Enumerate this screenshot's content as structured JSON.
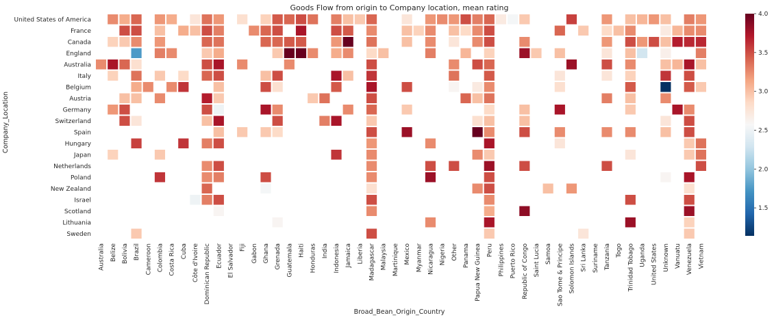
{
  "chart_data": {
    "type": "heatmap",
    "title": "Goods Flow from origin to Company location, mean rating",
    "xlabel": "Broad_Bean_Origin_Country",
    "ylabel": "Company_Location",
    "x": [
      "Australia",
      "Belize",
      "Bolivia",
      "Brazil",
      "Cameroon",
      "Colombia",
      "Costa Rica",
      "Cuba",
      "Côte d'Ivoire",
      "Dominican Republic",
      "Ecuador",
      "El Salvador",
      "Fiji",
      "Gabon",
      "Ghana",
      "Grenada",
      "Guatemala",
      "Haiti",
      "Honduras",
      "India",
      "Indonesia",
      "Jamaica",
      "Liberia",
      "Madagascar",
      "Malaysia",
      "Martinique",
      "Mexico",
      "Myanmar",
      "Nicaragua",
      "Nigeria",
      "Other",
      "Panama",
      "Papua New Guinea",
      "Peru",
      "Philippines",
      "Puerto Rico",
      "Republic of Congo",
      "Saint Lucia",
      "Samoa",
      "Sao Tome & Principe",
      "Solomon Islands",
      "Sri Lanka",
      "Suriname",
      "Tanzania",
      "Togo",
      "Trinidad Tobago",
      "Uganda",
      "United States",
      "Unknown",
      "Vanuatu",
      "Venezuela",
      "Vietnam"
    ],
    "y": [
      "United States of America",
      "France",
      "Canada",
      "England",
      "Australia",
      "Italy",
      "Belgium",
      "Austria",
      "Germany",
      "Switzerland",
      "Spain",
      "Hungary",
      "Japan",
      "Netherlands",
      "Poland",
      "New Zealand",
      "Israel",
      "Scotland",
      "Lithuania",
      "Sweden"
    ],
    "values": [
      [
        null,
        3.25,
        3.1,
        3.4,
        null,
        3.2,
        3.1,
        null,
        2.75,
        3.35,
        3.2,
        null,
        2.8,
        null,
        2.9,
        3.45,
        3.4,
        3.5,
        3.35,
        null,
        3.3,
        3.0,
        2.95,
        3.4,
        null,
        null,
        2.75,
        null,
        3.2,
        3.25,
        3.2,
        3.5,
        3.3,
        3.4,
        2.7,
        2.55,
        2.95,
        null,
        null,
        null,
        3.55,
        null,
        null,
        3.2,
        null,
        3.0,
        3.05,
        3.2,
        3.0,
        null,
        3.3,
        3.2
      ],
      [
        null,
        null,
        3.5,
        3.5,
        null,
        3.0,
        null,
        3.1,
        3.0,
        3.5,
        3.3,
        null,
        null,
        3.25,
        3.4,
        3.5,
        null,
        3.75,
        null,
        null,
        3.5,
        3.45,
        null,
        3.25,
        null,
        null,
        3.0,
        2.9,
        3.25,
        null,
        3.0,
        2.85,
        3.25,
        3.5,
        null,
        null,
        null,
        null,
        null,
        3.4,
        null,
        2.95,
        null,
        2.85,
        3.0,
        3.25,
        null,
        null,
        2.7,
        3.05,
        3.25,
        3.25
      ],
      [
        null,
        2.9,
        2.95,
        3.25,
        null,
        3.2,
        null,
        null,
        null,
        3.4,
        3.35,
        null,
        null,
        null,
        3.4,
        3.4,
        3.45,
        3.45,
        null,
        null,
        3.2,
        4.0,
        null,
        3.35,
        null,
        null,
        3.0,
        null,
        3.25,
        null,
        2.75,
        null,
        3.25,
        3.5,
        null,
        null,
        3.25,
        null,
        null,
        null,
        null,
        null,
        null,
        3.2,
        null,
        3.5,
        3.2,
        3.5,
        3.0,
        3.7,
        3.65,
        3.65
      ],
      [
        null,
        null,
        null,
        1.75,
        null,
        3.3,
        3.25,
        null,
        null,
        2.95,
        3.1,
        null,
        null,
        null,
        null,
        2.95,
        4.0,
        4.0,
        3.25,
        null,
        3.1,
        3.25,
        null,
        2.85,
        3.0,
        null,
        null,
        null,
        3.3,
        null,
        null,
        3.05,
        null,
        2.9,
        null,
        null,
        3.8,
        2.95,
        null,
        3.0,
        null,
        null,
        null,
        2.75,
        null,
        3.0,
        2.3,
        null,
        2.65,
        null,
        null,
        3.3
      ],
      [
        3.25,
        3.75,
        3.4,
        2.8,
        null,
        null,
        null,
        null,
        null,
        3.5,
        3.75,
        null,
        3.25,
        null,
        null,
        null,
        3.25,
        null,
        null,
        null,
        null,
        null,
        null,
        3.5,
        null,
        null,
        null,
        null,
        null,
        null,
        3.25,
        null,
        3.5,
        3.4,
        null,
        null,
        null,
        null,
        null,
        null,
        3.8,
        null,
        null,
        3.5,
        null,
        3.25,
        null,
        null,
        3.0,
        3.05,
        3.75,
        3.0
      ],
      [
        null,
        2.9,
        null,
        3.35,
        null,
        2.95,
        null,
        2.85,
        null,
        3.4,
        3.5,
        null,
        null,
        null,
        3.0,
        3.5,
        null,
        null,
        null,
        null,
        3.75,
        3.0,
        null,
        3.6,
        null,
        null,
        null,
        null,
        null,
        null,
        3.35,
        null,
        null,
        3.45,
        null,
        null,
        null,
        null,
        null,
        2.75,
        null,
        null,
        null,
        2.75,
        null,
        2.9,
        null,
        null,
        3.6,
        null,
        3.5,
        null
      ],
      [
        null,
        null,
        null,
        3.1,
        3.25,
        null,
        3.25,
        3.6,
        null,
        null,
        3.0,
        null,
        null,
        null,
        3.5,
        2.8,
        null,
        null,
        null,
        null,
        3.45,
        null,
        null,
        3.75,
        null,
        null,
        3.5,
        null,
        null,
        null,
        2.6,
        null,
        2.7,
        3.25,
        null,
        null,
        null,
        null,
        null,
        2.8,
        null,
        null,
        null,
        null,
        null,
        3.45,
        null,
        null,
        1.0,
        null,
        3.45,
        2.95
      ],
      [
        null,
        null,
        3.0,
        3.0,
        null,
        3.25,
        null,
        null,
        null,
        3.7,
        2.95,
        null,
        null,
        null,
        null,
        null,
        null,
        null,
        2.95,
        3.35,
        null,
        null,
        null,
        3.5,
        null,
        null,
        null,
        null,
        null,
        null,
        null,
        3.4,
        3.0,
        3.35,
        null,
        null,
        null,
        null,
        null,
        null,
        null,
        null,
        null,
        3.3,
        null,
        3.0,
        null,
        null,
        3.25,
        null,
        null,
        null
      ],
      [
        null,
        3.2,
        3.5,
        null,
        null,
        null,
        null,
        null,
        null,
        3.5,
        2.5,
        null,
        null,
        null,
        3.75,
        3.25,
        null,
        null,
        null,
        null,
        null,
        3.25,
        null,
        3.4,
        null,
        null,
        2.95,
        null,
        null,
        null,
        null,
        null,
        null,
        2.85,
        null,
        null,
        3.0,
        null,
        null,
        3.75,
        null,
        null,
        null,
        null,
        null,
        2.95,
        null,
        null,
        null,
        3.75,
        3.25,
        null
      ],
      [
        null,
        null,
        3.5,
        2.75,
        null,
        null,
        null,
        null,
        null,
        3.0,
        3.75,
        null,
        null,
        null,
        null,
        3.5,
        null,
        null,
        null,
        3.3,
        3.75,
        null,
        null,
        2.95,
        null,
        null,
        null,
        null,
        null,
        null,
        null,
        null,
        2.8,
        3.0,
        null,
        null,
        3.0,
        null,
        null,
        null,
        null,
        null,
        null,
        null,
        null,
        null,
        null,
        null,
        2.75,
        null,
        3.5,
        null
      ],
      [
        null,
        null,
        null,
        null,
        null,
        null,
        null,
        null,
        null,
        null,
        3.0,
        null,
        2.95,
        null,
        2.95,
        2.85,
        null,
        null,
        null,
        null,
        null,
        null,
        null,
        3.5,
        null,
        null,
        3.8,
        null,
        null,
        null,
        null,
        null,
        4.0,
        3.25,
        null,
        null,
        3.5,
        null,
        null,
        3.25,
        null,
        null,
        null,
        3.25,
        null,
        3.25,
        null,
        null,
        3.0,
        null,
        3.5,
        null
      ],
      [
        null,
        null,
        null,
        3.55,
        null,
        null,
        null,
        3.6,
        null,
        3.3,
        3.5,
        null,
        null,
        null,
        null,
        null,
        null,
        null,
        null,
        null,
        null,
        null,
        null,
        3.2,
        null,
        null,
        null,
        null,
        3.25,
        null,
        null,
        null,
        null,
        3.75,
        null,
        null,
        null,
        null,
        null,
        2.75,
        null,
        null,
        null,
        null,
        null,
        null,
        null,
        null,
        null,
        null,
        2.95,
        3.35
      ],
      [
        null,
        2.9,
        null,
        null,
        null,
        2.95,
        null,
        null,
        null,
        null,
        null,
        null,
        null,
        null,
        null,
        null,
        null,
        null,
        null,
        null,
        3.6,
        null,
        null,
        3.25,
        null,
        null,
        null,
        null,
        null,
        null,
        null,
        null,
        3.25,
        2.95,
        null,
        null,
        null,
        null,
        null,
        null,
        null,
        null,
        null,
        null,
        null,
        2.75,
        null,
        null,
        null,
        null,
        2.95,
        3.35
      ],
      [
        null,
        null,
        null,
        null,
        null,
        null,
        null,
        null,
        null,
        3.25,
        3.5,
        null,
        null,
        null,
        null,
        null,
        null,
        null,
        null,
        null,
        null,
        null,
        null,
        3.25,
        null,
        null,
        null,
        null,
        3.5,
        null,
        3.5,
        null,
        null,
        3.8,
        null,
        null,
        3.5,
        null,
        null,
        null,
        null,
        null,
        null,
        3.5,
        null,
        null,
        null,
        null,
        null,
        null,
        null,
        3.5
      ],
      [
        null,
        null,
        null,
        null,
        null,
        3.6,
        null,
        null,
        null,
        3.25,
        3.3,
        null,
        null,
        null,
        3.5,
        null,
        null,
        null,
        null,
        null,
        null,
        null,
        null,
        3.25,
        null,
        null,
        null,
        null,
        3.8,
        null,
        null,
        null,
        null,
        3.5,
        null,
        null,
        null,
        null,
        null,
        null,
        null,
        null,
        null,
        null,
        null,
        null,
        null,
        null,
        2.6,
        null,
        3.75,
        null
      ],
      [
        null,
        null,
        null,
        null,
        null,
        null,
        null,
        null,
        null,
        3.4,
        null,
        null,
        null,
        null,
        2.55,
        null,
        null,
        null,
        null,
        null,
        null,
        null,
        null,
        2.8,
        null,
        null,
        null,
        null,
        null,
        null,
        null,
        null,
        3.25,
        3.5,
        null,
        null,
        null,
        null,
        3.0,
        null,
        3.2,
        null,
        null,
        null,
        null,
        null,
        null,
        null,
        null,
        null,
        2.8,
        null
      ],
      [
        null,
        null,
        null,
        null,
        null,
        null,
        null,
        null,
        2.5,
        3.3,
        3.5,
        null,
        null,
        null,
        null,
        null,
        null,
        null,
        null,
        null,
        null,
        null,
        null,
        3.5,
        null,
        null,
        null,
        null,
        null,
        null,
        null,
        null,
        null,
        3.25,
        null,
        null,
        null,
        null,
        null,
        null,
        null,
        null,
        null,
        null,
        null,
        3.5,
        null,
        null,
        null,
        null,
        3.5,
        null
      ],
      [
        null,
        null,
        null,
        null,
        null,
        null,
        null,
        null,
        null,
        null,
        2.6,
        null,
        null,
        null,
        null,
        null,
        null,
        null,
        null,
        null,
        null,
        null,
        null,
        3.25,
        null,
        null,
        null,
        null,
        null,
        null,
        null,
        null,
        null,
        3.1,
        null,
        null,
        3.85,
        null,
        null,
        null,
        null,
        null,
        null,
        null,
        null,
        null,
        null,
        null,
        null,
        null,
        3.8,
        null
      ],
      [
        null,
        null,
        null,
        null,
        null,
        null,
        null,
        null,
        null,
        null,
        null,
        null,
        null,
        null,
        null,
        2.6,
        null,
        null,
        null,
        null,
        null,
        null,
        null,
        null,
        null,
        null,
        null,
        null,
        3.25,
        null,
        null,
        null,
        null,
        3.75,
        null,
        null,
        null,
        null,
        null,
        null,
        null,
        null,
        null,
        null,
        null,
        3.8,
        null,
        null,
        null,
        null,
        2.9,
        null
      ],
      [
        null,
        null,
        null,
        2.95,
        null,
        null,
        null,
        null,
        null,
        null,
        null,
        null,
        null,
        null,
        null,
        null,
        null,
        null,
        null,
        null,
        null,
        null,
        null,
        3.5,
        null,
        null,
        null,
        null,
        null,
        null,
        null,
        null,
        null,
        2.95,
        null,
        null,
        null,
        null,
        null,
        null,
        null,
        2.75,
        null,
        null,
        null,
        null,
        null,
        null,
        null,
        null,
        2.95,
        null
      ]
    ],
    "colorbar": {
      "min": 1.14,
      "max": 4.0,
      "ticks": [
        "1.5",
        "2.0",
        "2.5",
        "3.0",
        "3.5",
        "4.0"
      ]
    },
    "colormap": "RdBu_r",
    "grid": false,
    "legend": "colorbar-right"
  }
}
